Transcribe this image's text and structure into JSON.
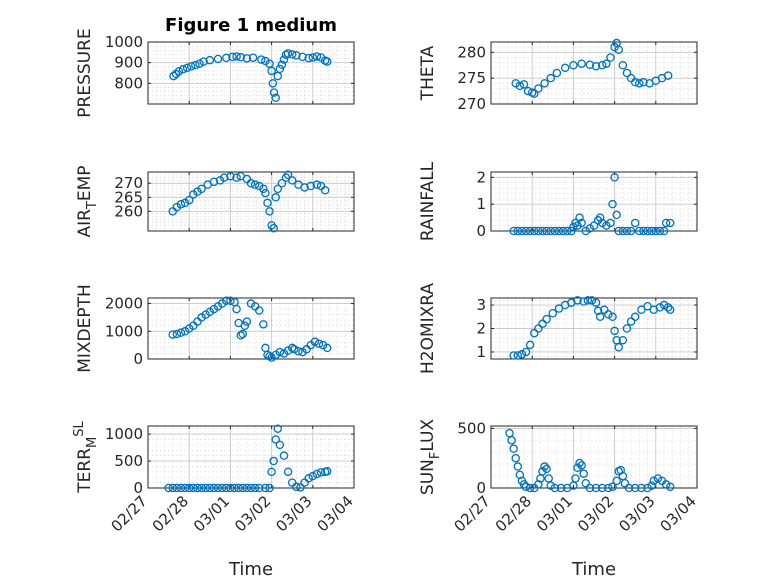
{
  "figure": {
    "title": "Figure 1 medium",
    "xlabel": "Time",
    "marker_color": "#0072BD"
  },
  "chart_data": [
    {
      "type": "scatter",
      "ylabel": "PRESSURE",
      "ylabel_parts": [
        [
          "PRESSURE",
          ""
        ]
      ],
      "xlim": [
        "02/27",
        "03/04"
      ],
      "ylim": [
        700,
        1000
      ],
      "yticks": [
        800,
        900,
        1000
      ],
      "grid": true,
      "points": [
        [
          0.62,
          835
        ],
        [
          0.68,
          845
        ],
        [
          0.75,
          858
        ],
        [
          0.85,
          868
        ],
        [
          0.95,
          875
        ],
        [
          1.05,
          882
        ],
        [
          1.15,
          888
        ],
        [
          1.25,
          895
        ],
        [
          1.35,
          905
        ],
        [
          1.5,
          912
        ],
        [
          1.7,
          918
        ],
        [
          1.9,
          923
        ],
        [
          2.05,
          928
        ],
        [
          2.15,
          930
        ],
        [
          2.25,
          926
        ],
        [
          2.4,
          921
        ],
        [
          2.55,
          924
        ],
        [
          2.75,
          915
        ],
        [
          2.85,
          908
        ],
        [
          2.95,
          895
        ],
        [
          3.0,
          860
        ],
        [
          3.03,
          800
        ],
        [
          3.06,
          755
        ],
        [
          3.1,
          730
        ],
        [
          3.15,
          835
        ],
        [
          3.2,
          870
        ],
        [
          3.25,
          890
        ],
        [
          3.3,
          915
        ],
        [
          3.35,
          938
        ],
        [
          3.4,
          945
        ],
        [
          3.5,
          940
        ],
        [
          3.6,
          935
        ],
        [
          3.75,
          928
        ],
        [
          3.9,
          922
        ],
        [
          4.0,
          925
        ],
        [
          4.1,
          930
        ],
        [
          4.2,
          925
        ],
        [
          4.3,
          910
        ],
        [
          4.35,
          905
        ]
      ]
    },
    {
      "type": "scatter",
      "ylabel": "THETA",
      "ylabel_parts": [
        [
          "THETA",
          ""
        ]
      ],
      "xlim": [
        "02/27",
        "03/04"
      ],
      "ylim": [
        270,
        282
      ],
      "yticks": [
        270,
        275,
        280
      ],
      "grid": true,
      "points": [
        [
          0.6,
          274
        ],
        [
          0.7,
          273.5
        ],
        [
          0.8,
          273.8
        ],
        [
          0.9,
          272.5
        ],
        [
          1.0,
          272.2
        ],
        [
          1.05,
          272.0
        ],
        [
          1.15,
          273.0
        ],
        [
          1.3,
          274.0
        ],
        [
          1.45,
          275.0
        ],
        [
          1.6,
          276.0
        ],
        [
          1.8,
          277.0
        ],
        [
          2.0,
          277.5
        ],
        [
          2.2,
          277.8
        ],
        [
          2.4,
          277.6
        ],
        [
          2.55,
          277.3
        ],
        [
          2.7,
          277.5
        ],
        [
          2.8,
          277.8
        ],
        [
          2.9,
          279.0
        ],
        [
          3.0,
          281.0
        ],
        [
          3.05,
          281.8
        ],
        [
          3.1,
          280.5
        ],
        [
          3.2,
          277.5
        ],
        [
          3.3,
          276.0
        ],
        [
          3.4,
          275.0
        ],
        [
          3.5,
          274.2
        ],
        [
          3.6,
          274.0
        ],
        [
          3.7,
          274.2
        ],
        [
          3.85,
          274.0
        ],
        [
          4.0,
          274.5
        ],
        [
          4.15,
          275.0
        ],
        [
          4.3,
          275.5
        ]
      ]
    },
    {
      "type": "scatter",
      "ylabel": "AIR_TEMP",
      "ylabel_parts": [
        [
          "AIR",
          ""
        ],
        [
          "T",
          "sub"
        ],
        [
          "EMP",
          ""
        ]
      ],
      "xlim": [
        "02/27",
        "03/04"
      ],
      "ylim": [
        253,
        274
      ],
      "yticks": [
        260,
        265,
        270
      ],
      "grid": true,
      "points": [
        [
          0.6,
          260
        ],
        [
          0.7,
          261.5
        ],
        [
          0.8,
          262.5
        ],
        [
          0.9,
          263
        ],
        [
          1.0,
          264
        ],
        [
          1.1,
          266
        ],
        [
          1.2,
          267
        ],
        [
          1.3,
          268
        ],
        [
          1.45,
          269.5
        ],
        [
          1.6,
          270.5
        ],
        [
          1.75,
          271
        ],
        [
          1.85,
          272
        ],
        [
          2.0,
          272.5
        ],
        [
          2.15,
          272
        ],
        [
          2.25,
          272.5
        ],
        [
          2.4,
          271.5
        ],
        [
          2.5,
          270
        ],
        [
          2.6,
          269.5
        ],
        [
          2.7,
          269
        ],
        [
          2.8,
          268
        ],
        [
          2.85,
          266.5
        ],
        [
          2.9,
          263
        ],
        [
          2.95,
          260
        ],
        [
          3.0,
          255
        ],
        [
          3.05,
          254
        ],
        [
          3.1,
          265
        ],
        [
          3.15,
          268
        ],
        [
          3.25,
          270
        ],
        [
          3.35,
          272
        ],
        [
          3.4,
          273
        ],
        [
          3.5,
          271
        ],
        [
          3.65,
          269.5
        ],
        [
          3.8,
          268.5
        ],
        [
          3.95,
          269
        ],
        [
          4.1,
          269.5
        ],
        [
          4.2,
          269
        ],
        [
          4.3,
          267.5
        ]
      ]
    },
    {
      "type": "scatter",
      "ylabel": "RAINFALL",
      "ylabel_parts": [
        [
          "RAINFALL",
          ""
        ]
      ],
      "xlim": [
        "02/27",
        "03/04"
      ],
      "ylim": [
        0,
        2.2
      ],
      "yticks": [
        0,
        1,
        2
      ],
      "grid": true,
      "points": [
        [
          0.55,
          0
        ],
        [
          0.65,
          0
        ],
        [
          0.75,
          0
        ],
        [
          0.85,
          0
        ],
        [
          0.95,
          0
        ],
        [
          1.05,
          0
        ],
        [
          1.15,
          0
        ],
        [
          1.25,
          0
        ],
        [
          1.35,
          0
        ],
        [
          1.45,
          0
        ],
        [
          1.55,
          0
        ],
        [
          1.65,
          0
        ],
        [
          1.75,
          0
        ],
        [
          1.85,
          0
        ],
        [
          1.95,
          0
        ],
        [
          2.0,
          0.15
        ],
        [
          2.05,
          0.3
        ],
        [
          2.1,
          0.2
        ],
        [
          2.15,
          0.5
        ],
        [
          2.2,
          0.3
        ],
        [
          2.3,
          0
        ],
        [
          2.4,
          0.1
        ],
        [
          2.5,
          0.2
        ],
        [
          2.6,
          0.4
        ],
        [
          2.65,
          0.5
        ],
        [
          2.7,
          0.3
        ],
        [
          2.8,
          0.2
        ],
        [
          2.9,
          0.3
        ],
        [
          2.95,
          1.0
        ],
        [
          3.0,
          2.0
        ],
        [
          3.05,
          0.6
        ],
        [
          3.1,
          0
        ],
        [
          3.2,
          0
        ],
        [
          3.3,
          0
        ],
        [
          3.4,
          0
        ],
        [
          3.5,
          0.3
        ],
        [
          3.6,
          0
        ],
        [
          3.7,
          0
        ],
        [
          3.8,
          0
        ],
        [
          3.9,
          0
        ],
        [
          4.0,
          0
        ],
        [
          4.1,
          0
        ],
        [
          4.2,
          0
        ],
        [
          4.25,
          0.3
        ],
        [
          4.35,
          0.3
        ]
      ]
    },
    {
      "type": "scatter",
      "ylabel": "MIXDEPTH",
      "ylabel_parts": [
        [
          "MIXDEPTH",
          ""
        ]
      ],
      "xlim": [
        "02/27",
        "03/04"
      ],
      "ylim": [
        0,
        2200
      ],
      "yticks": [
        0,
        1000,
        2000
      ],
      "grid": true,
      "points": [
        [
          0.6,
          880
        ],
        [
          0.7,
          900
        ],
        [
          0.8,
          950
        ],
        [
          0.9,
          1000
        ],
        [
          1.0,
          1100
        ],
        [
          1.1,
          1200
        ],
        [
          1.2,
          1350
        ],
        [
          1.3,
          1500
        ],
        [
          1.4,
          1600
        ],
        [
          1.5,
          1700
        ],
        [
          1.6,
          1800
        ],
        [
          1.7,
          1900
        ],
        [
          1.8,
          2000
        ],
        [
          1.9,
          2100
        ],
        [
          2.0,
          2100
        ],
        [
          2.1,
          2050
        ],
        [
          2.15,
          1800
        ],
        [
          2.2,
          1300
        ],
        [
          2.25,
          850
        ],
        [
          2.3,
          900
        ],
        [
          2.35,
          1200
        ],
        [
          2.4,
          1350
        ],
        [
          2.5,
          2000
        ],
        [
          2.6,
          1900
        ],
        [
          2.7,
          1750
        ],
        [
          2.8,
          1250
        ],
        [
          2.85,
          400
        ],
        [
          2.9,
          150
        ],
        [
          2.95,
          100
        ],
        [
          3.0,
          50
        ],
        [
          3.1,
          150
        ],
        [
          3.2,
          250
        ],
        [
          3.3,
          200
        ],
        [
          3.4,
          300
        ],
        [
          3.5,
          400
        ],
        [
          3.55,
          350
        ],
        [
          3.65,
          280
        ],
        [
          3.75,
          250
        ],
        [
          3.85,
          350
        ],
        [
          3.95,
          500
        ],
        [
          4.05,
          620
        ],
        [
          4.15,
          550
        ],
        [
          4.25,
          500
        ],
        [
          4.35,
          400
        ]
      ]
    },
    {
      "type": "scatter",
      "ylabel": "H2OMIXRA",
      "ylabel_parts": [
        [
          "H2OMIXRA",
          ""
        ]
      ],
      "xlim": [
        "02/27",
        "03/04"
      ],
      "ylim": [
        0.7,
        3.3
      ],
      "yticks": [
        1,
        2,
        3
      ],
      "grid": true,
      "points": [
        [
          0.55,
          0.85
        ],
        [
          0.65,
          0.85
        ],
        [
          0.75,
          0.9
        ],
        [
          0.85,
          1.0
        ],
        [
          0.95,
          1.3
        ],
        [
          1.05,
          1.8
        ],
        [
          1.15,
          2.0
        ],
        [
          1.25,
          2.2
        ],
        [
          1.35,
          2.4
        ],
        [
          1.5,
          2.65
        ],
        [
          1.65,
          2.85
        ],
        [
          1.8,
          3.0
        ],
        [
          1.95,
          3.1
        ],
        [
          2.1,
          3.2
        ],
        [
          2.25,
          3.15
        ],
        [
          2.35,
          3.2
        ],
        [
          2.45,
          3.2
        ],
        [
          2.55,
          3.1
        ],
        [
          2.6,
          2.75
        ],
        [
          2.65,
          2.5
        ],
        [
          2.75,
          2.8
        ],
        [
          2.85,
          2.6
        ],
        [
          2.95,
          2.5
        ],
        [
          3.0,
          1.9
        ],
        [
          3.05,
          1.5
        ],
        [
          3.1,
          1.2
        ],
        [
          3.2,
          1.5
        ],
        [
          3.3,
          2.0
        ],
        [
          3.4,
          2.3
        ],
        [
          3.5,
          2.5
        ],
        [
          3.65,
          2.8
        ],
        [
          3.8,
          2.95
        ],
        [
          3.95,
          2.8
        ],
        [
          4.1,
          2.9
        ],
        [
          4.2,
          3.0
        ],
        [
          4.3,
          2.9
        ],
        [
          4.35,
          2.8
        ]
      ]
    },
    {
      "type": "scatter",
      "ylabel": "TERR_MSL",
      "ylabel_parts": [
        [
          "TERR",
          ""
        ],
        [
          "M",
          "sub"
        ],
        [
          "SL",
          "sup"
        ]
      ],
      "xlim": [
        "02/27",
        "03/04"
      ],
      "ylim": [
        0,
        1150
      ],
      "yticks": [
        0,
        500,
        1000
      ],
      "grid": true,
      "points": [
        [
          0.5,
          0
        ],
        [
          0.6,
          0
        ],
        [
          0.7,
          0
        ],
        [
          0.8,
          0
        ],
        [
          0.9,
          0
        ],
        [
          1.0,
          0
        ],
        [
          1.1,
          0
        ],
        [
          1.2,
          0
        ],
        [
          1.3,
          0
        ],
        [
          1.4,
          0
        ],
        [
          1.5,
          0
        ],
        [
          1.6,
          0
        ],
        [
          1.7,
          0
        ],
        [
          1.8,
          0
        ],
        [
          1.9,
          0
        ],
        [
          2.0,
          0
        ],
        [
          2.1,
          0
        ],
        [
          2.2,
          0
        ],
        [
          2.3,
          0
        ],
        [
          2.4,
          0
        ],
        [
          2.5,
          0
        ],
        [
          2.6,
          0
        ],
        [
          2.7,
          0
        ],
        [
          2.85,
          0
        ],
        [
          2.95,
          0
        ],
        [
          3.0,
          300
        ],
        [
          3.05,
          500
        ],
        [
          3.1,
          900
        ],
        [
          3.15,
          1100
        ],
        [
          3.2,
          800
        ],
        [
          3.3,
          600
        ],
        [
          3.4,
          300
        ],
        [
          3.5,
          100
        ],
        [
          3.6,
          20
        ],
        [
          3.7,
          10
        ],
        [
          3.8,
          100
        ],
        [
          3.9,
          180
        ],
        [
          4.0,
          220
        ],
        [
          4.1,
          260
        ],
        [
          4.2,
          290
        ],
        [
          4.3,
          300
        ],
        [
          4.35,
          310
        ]
      ]
    },
    {
      "type": "scatter",
      "ylabel": "SUN_FLUX",
      "ylabel_parts": [
        [
          "SUN",
          ""
        ],
        [
          "F",
          "sub"
        ],
        [
          "LUX",
          ""
        ]
      ],
      "xlim": [
        "02/27",
        "03/04"
      ],
      "ylim": [
        0,
        520
      ],
      "yticks": [
        0,
        500
      ],
      "grid": true,
      "points": [
        [
          0.45,
          460
        ],
        [
          0.5,
          400
        ],
        [
          0.55,
          330
        ],
        [
          0.6,
          250
        ],
        [
          0.65,
          180
        ],
        [
          0.7,
          110
        ],
        [
          0.75,
          60
        ],
        [
          0.8,
          30
        ],
        [
          0.85,
          10
        ],
        [
          0.95,
          0
        ],
        [
          1.05,
          0
        ],
        [
          1.15,
          30
        ],
        [
          1.2,
          80
        ],
        [
          1.25,
          140
        ],
        [
          1.3,
          180
        ],
        [
          1.35,
          160
        ],
        [
          1.4,
          80
        ],
        [
          1.45,
          20
        ],
        [
          1.55,
          0
        ],
        [
          1.7,
          0
        ],
        [
          1.85,
          0
        ],
        [
          2.0,
          20
        ],
        [
          2.05,
          80
        ],
        [
          2.1,
          170
        ],
        [
          2.15,
          210
        ],
        [
          2.2,
          190
        ],
        [
          2.25,
          120
        ],
        [
          2.3,
          40
        ],
        [
          2.4,
          0
        ],
        [
          2.55,
          0
        ],
        [
          2.7,
          0
        ],
        [
          2.85,
          0
        ],
        [
          2.95,
          10
        ],
        [
          3.05,
          60
        ],
        [
          3.1,
          140
        ],
        [
          3.15,
          150
        ],
        [
          3.2,
          100
        ],
        [
          3.25,
          40
        ],
        [
          3.35,
          0
        ],
        [
          3.5,
          0
        ],
        [
          3.65,
          0
        ],
        [
          3.8,
          0
        ],
        [
          3.9,
          20
        ],
        [
          3.95,
          60
        ],
        [
          4.05,
          80
        ],
        [
          4.15,
          60
        ],
        [
          4.25,
          30
        ],
        [
          4.35,
          10
        ]
      ]
    }
  ],
  "x_ticks": [
    "02/27",
    "02/28",
    "03/01",
    "03/02",
    "03/03",
    "03/04"
  ]
}
